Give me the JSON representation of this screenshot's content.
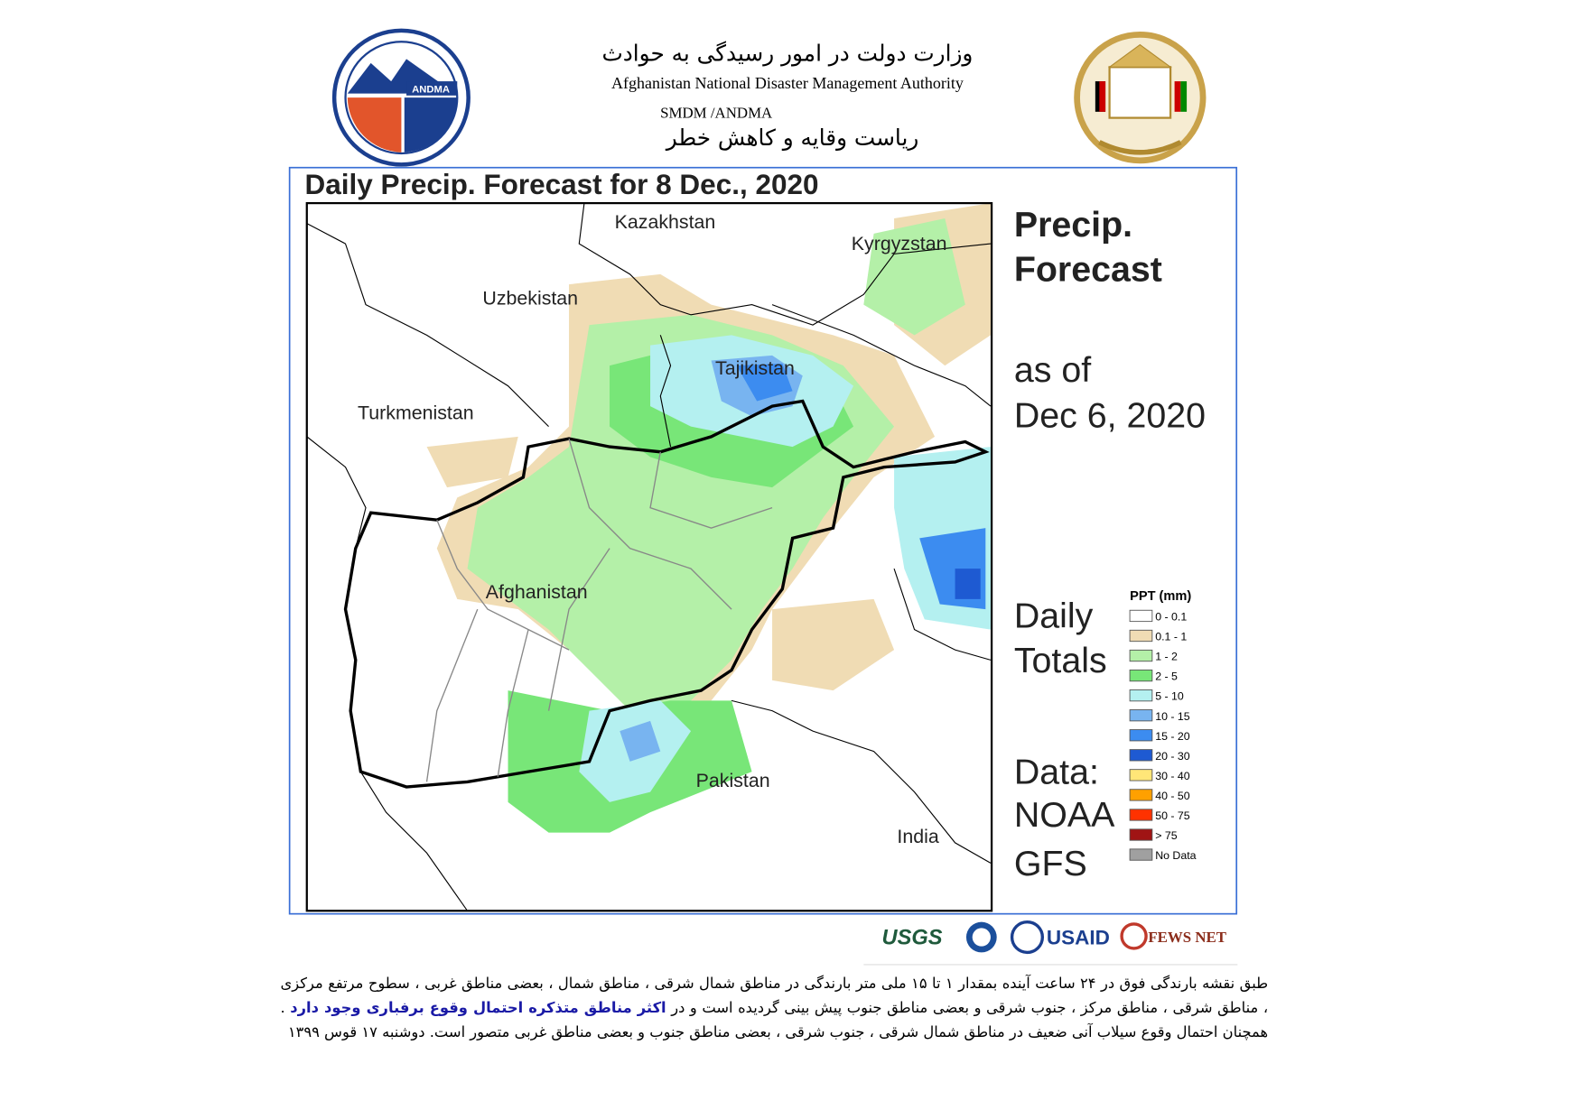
{
  "header": {
    "title_fa": "وزارت دولت در امور رسیدگی به حوادث",
    "title_en": "Afghanistan National Disaster Management Authority",
    "unit": "SMDM /ANDMA",
    "subtitle_fa": "ریاست وقایه و کاهش خطر",
    "logo_text": "ANDMA"
  },
  "map": {
    "title": "Daily Precip. Forecast for 8 Dec., 2020",
    "countries": [
      "Kazakhstan",
      "Kyrgyzstan",
      "Uzbekistan",
      "Tajikistan",
      "Turkmenistan",
      "Afghanistan",
      "Pakistan",
      "India"
    ],
    "side_text": [
      "Precip.",
      "Forecast",
      "as of",
      "Dec 6, 2020",
      "Daily",
      "Totals",
      "Data:",
      "NOAA",
      "GFS"
    ],
    "legend": {
      "title": "PPT (mm)",
      "items": [
        {
          "label": "0 - 0.1",
          "color": "#ffffff"
        },
        {
          "label": "0.1 - 1",
          "color": "#f0dcb4"
        },
        {
          "label": "1 - 2",
          "color": "#b4f0a8"
        },
        {
          "label": "2 - 5",
          "color": "#78e678"
        },
        {
          "label": "5 - 10",
          "color": "#b4f0f0"
        },
        {
          "label": "10 - 15",
          "color": "#78b4f0"
        },
        {
          "label": "15 - 20",
          "color": "#3c8cf0"
        },
        {
          "label": "20 - 30",
          "color": "#1e5ad2"
        },
        {
          "label": "30 - 40",
          "color": "#ffe678"
        },
        {
          "label": "40 - 50",
          "color": "#ffa000"
        },
        {
          "label": "50 - 75",
          "color": "#ff3200"
        },
        {
          "label": "> 75",
          "color": "#a01414"
        },
        {
          "label": "No Data",
          "color": "#a0a0a0"
        }
      ]
    }
  },
  "partners": [
    "USGS",
    "USAID",
    "FEWS NET"
  ],
  "body": {
    "segments": [
      "طبق نقشه بارندگی فوق در ۲۴ ساعت آینده بمقدار ۱ تا ۱۵ ملی متر بارندگی در مناطق شمال شرقی ، مناطق شمال ، بعضی مناطق غربی ، سطوح مرتفع مرکزی ، مناطق شرقی ، مناطق مرکز ، جنوب شرقی و بعضی مناطق جنوب پیش بینی گردیده است و در ",
      "اکثر مناطق متذکره احتمال وقوع برفباری وجود دارد",
      " . همچنان احتمال وقوع سیلاب آنی ضعیف در مناطق شمال شرقی ، جنوب شرقی ، بعضی مناطق جنوب و بعضی مناطق غربی متصور است. دوشنبه ۱۷ قوس ۱۳۹۹"
    ]
  }
}
